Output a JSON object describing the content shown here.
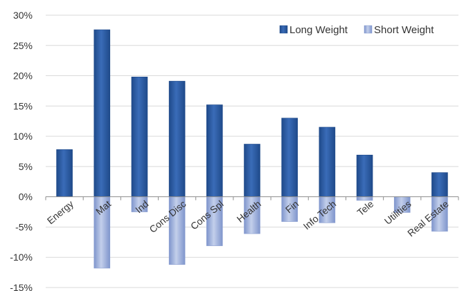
{
  "chart_data": {
    "type": "bar",
    "categories": [
      "Energy",
      "Mat",
      "Ind",
      "Cons Disc",
      "Cons Spl",
      "Health",
      "Fin",
      "Info Tech",
      "Tele",
      "Utilities",
      "Real Estate"
    ],
    "series": [
      {
        "name": "Long Weight",
        "values": [
          7.8,
          27.6,
          19.8,
          19.1,
          15.2,
          8.7,
          13.0,
          11.5,
          6.9,
          0.0,
          4.0
        ]
      },
      {
        "name": "Short Weight",
        "values": [
          0.0,
          -11.8,
          -2.5,
          -11.2,
          -8.1,
          -6.1,
          -4.1,
          -4.3,
          -0.6,
          -2.6,
          -5.7
        ]
      }
    ],
    "title": "",
    "xlabel": "",
    "ylabel": "",
    "ylim": [
      -15,
      30
    ],
    "yticks": [
      -15,
      -10,
      -5,
      0,
      5,
      10,
      15,
      20,
      25,
      30
    ],
    "ytick_format": "percent",
    "grid": true,
    "legend_position": "top-right",
    "colors": {
      "long": "#2e5da6",
      "long_dark": "#1f4a8a",
      "short": "#8b9fd1",
      "short_light": "#c3cfeb",
      "grid": "#d9d9d9"
    }
  }
}
